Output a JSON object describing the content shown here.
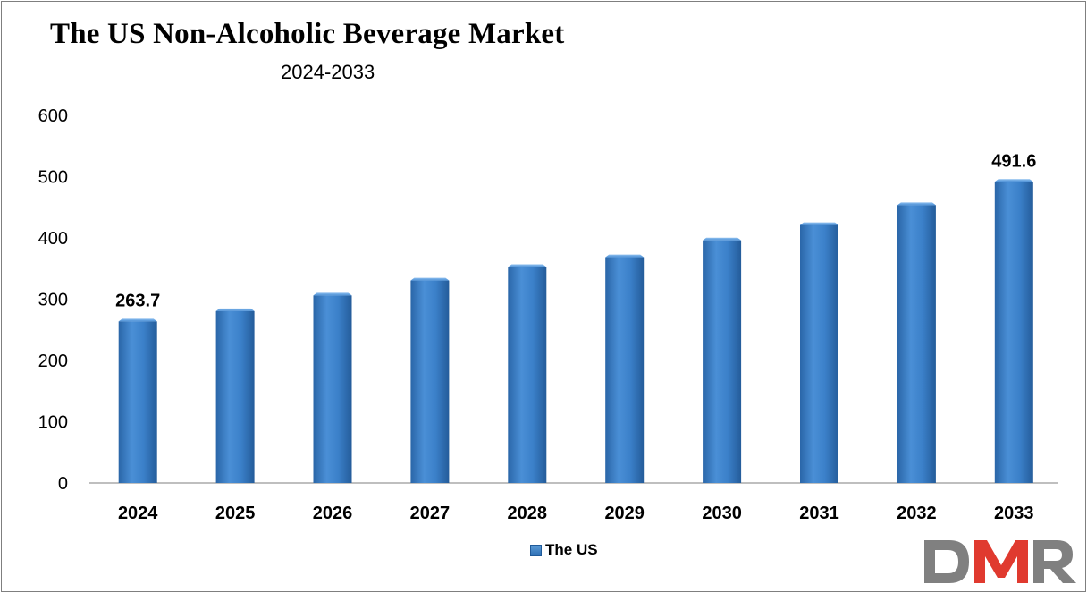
{
  "chart_data": {
    "type": "bar",
    "title": "The US Non-Alcoholic Beverage Market",
    "subtitle": "2024-2033",
    "categories": [
      "2024",
      "2025",
      "2026",
      "2027",
      "2028",
      "2029",
      "2030",
      "2031",
      "2032",
      "2033"
    ],
    "series": [
      {
        "name": "The US",
        "values": [
          263.7,
          280.5,
          306.0,
          330.5,
          352.5,
          368.5,
          396.0,
          421.0,
          453.5,
          491.6
        ]
      }
    ],
    "data_labels": [
      {
        "index": 0,
        "text": "263.7"
      },
      {
        "index": 9,
        "text": "491.6"
      }
    ],
    "yticks": [
      "0",
      "100",
      "200",
      "300",
      "400",
      "500",
      "600"
    ],
    "ylim": [
      0,
      600
    ],
    "xlabel": "",
    "ylabel": "",
    "grid": false,
    "legend_position": "bottom",
    "bar_color": "#2e75c0"
  },
  "logo": {
    "text": "DMR",
    "colors": [
      "#808080",
      "#e03a2f"
    ]
  }
}
